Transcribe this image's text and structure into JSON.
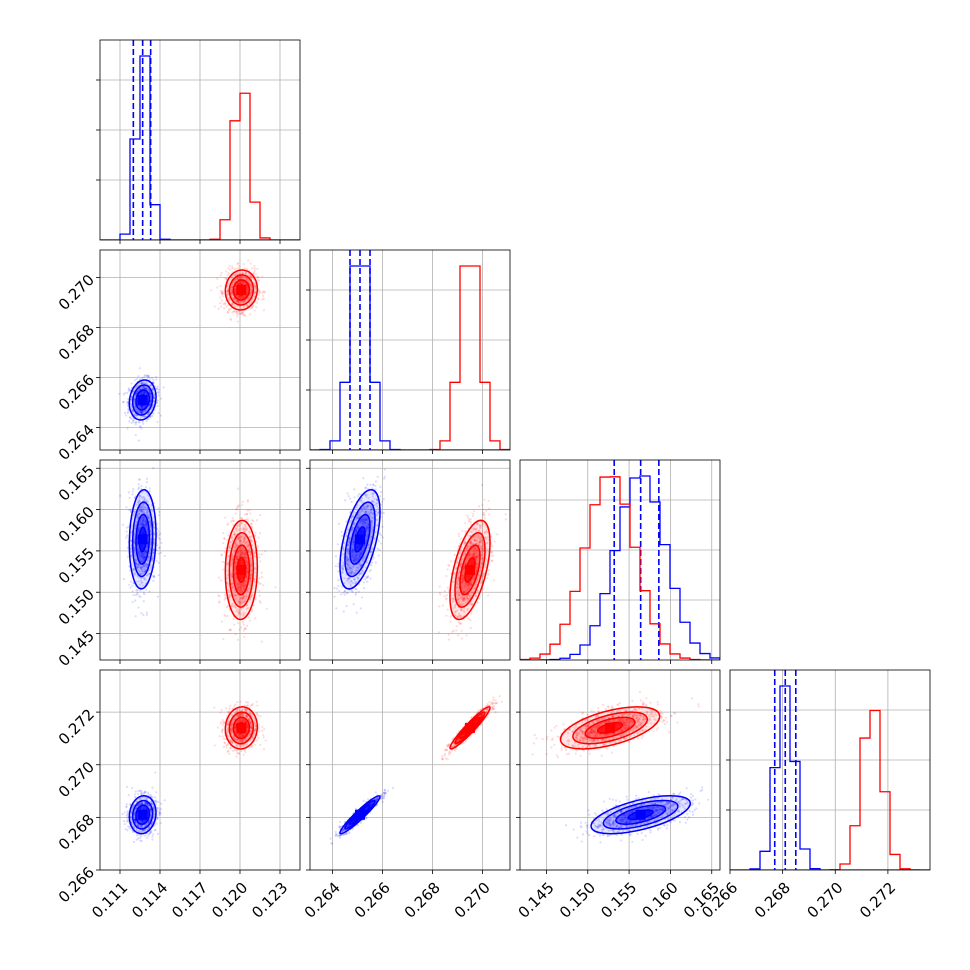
{
  "chart_data": {
    "type": "corner",
    "grid": true,
    "series": [
      {
        "name": "",
        "color": "#0000ff",
        "mean": [
          0.1127,
          0.2651,
          0.1564,
          0.2681
        ],
        "std": [
          0.0005,
          0.0004,
          0.003,
          0.00036
        ],
        "corr": [
          [
            1,
            0.15,
            0.1,
            0.1
          ],
          [
            0.15,
            1,
            0.55,
            0.95
          ],
          [
            0.1,
            0.55,
            1,
            0.6
          ],
          [
            0.1,
            0.95,
            0.6,
            1
          ]
        ],
        "quantile_lines": [
          [
            0.112,
            0.1127,
            0.1133
          ],
          [
            0.2647,
            0.2651,
            0.2655
          ],
          [
            0.1532,
            0.1564,
            0.1586
          ],
          [
            0.2677,
            0.2681,
            0.2685
          ]
        ]
      },
      {
        "name": "",
        "color": "#ff0000",
        "mean": [
          0.1201,
          0.2695,
          0.1527,
          0.2714
        ],
        "std": [
          0.0006,
          0.0004,
          0.003,
          0.0004
        ],
        "corr": [
          [
            1,
            0.05,
            0.05,
            0.05
          ],
          [
            0.05,
            1,
            0.55,
            0.95
          ],
          [
            0.05,
            0.55,
            1,
            0.55
          ],
          [
            0.05,
            0.95,
            0.55,
            1
          ]
        ]
      }
    ],
    "variables": [
      {
        "range": [
          0.1095,
          0.1245
        ],
        "ticks": [
          0.111,
          0.114,
          0.117,
          0.12,
          0.123
        ],
        "tick_labels": [
          "0.111",
          "0.114",
          "0.117",
          "0.120",
          "0.123"
        ]
      },
      {
        "range": [
          0.2631,
          0.2711
        ],
        "ticks": [
          0.264,
          0.266,
          0.268,
          0.27
        ],
        "tick_labels": [
          "0.264",
          "0.266",
          "0.268",
          "0.270"
        ]
      },
      {
        "range": [
          0.1418,
          0.166
        ],
        "ticks": [
          0.145,
          0.15,
          0.155,
          0.16,
          0.165
        ],
        "tick_labels": [
          "0.145",
          "0.150",
          "0.155",
          "0.160",
          "0.165"
        ]
      },
      {
        "range": [
          0.266,
          0.2736
        ],
        "ticks": [
          0.266,
          0.268,
          0.27,
          0.272
        ],
        "tick_labels": [
          "0.266",
          "0.268",
          "0.270",
          "0.272"
        ]
      }
    ]
  }
}
